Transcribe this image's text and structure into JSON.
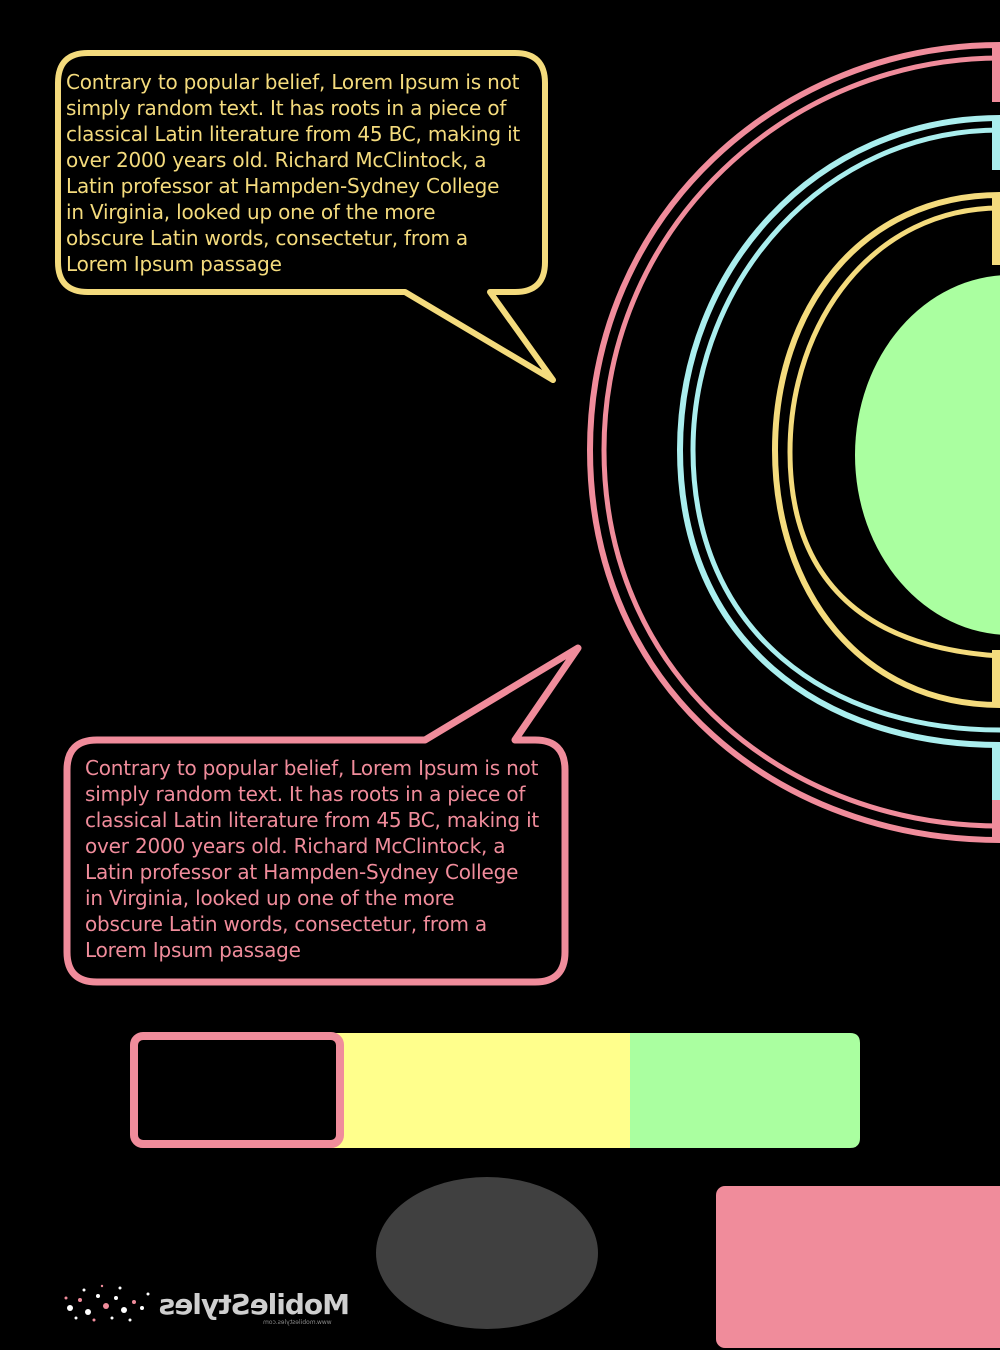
{
  "bubbles": {
    "top": {
      "lines": [
        "Contrary to popular belief, Lorem Ipsum is not",
        "simply random text. It has roots in a piece of",
        "classical Latin literature from 45 BC, making it",
        "over 2000 years old. Richard McClintock, a",
        "Latin professor at Hampden-Sydney College",
        "in Virginia, looked up one of the more",
        "obscure Latin words, consectetur, from a",
        "Lorem Ipsum passage"
      ]
    },
    "bottom": {
      "lines": [
        "Contrary to popular belief, Lorem Ipsum is not",
        "simply random text. It has roots in a piece of",
        "classical Latin literature from 45 BC, making it",
        "over 2000 years old. Richard McClintock, a",
        "Latin professor at Hampden-Sydney College",
        "in Virginia, looked up one of the more",
        "obscure Latin words, consectetur, from a",
        "Lorem Ipsum passage"
      ]
    }
  },
  "logo": {
    "wordmark": "MobileStyles",
    "tagline": "www.mobilestyles.com"
  },
  "colors": {
    "background": "#000000",
    "yellow": "#f4db7d",
    "pink": "#f08c9b",
    "cyan": "#aaeeee",
    "green": "#aaffa0",
    "pale_yellow": "#ffff8c",
    "gray": "#404040"
  }
}
